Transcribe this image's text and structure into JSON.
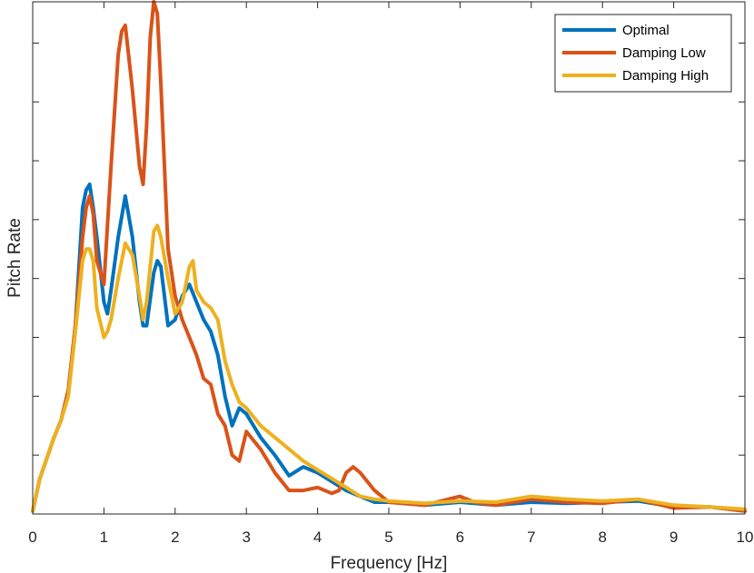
{
  "chart_data": {
    "type": "line",
    "title": "",
    "xlabel": "Frequency [Hz]",
    "ylabel": "Pitch Rate",
    "xlim": [
      0,
      10
    ],
    "ylim": [
      0,
      8.7
    ],
    "x_ticks": [
      0,
      1,
      2,
      3,
      4,
      5,
      6,
      7,
      8,
      9,
      10
    ],
    "x_tick_labels": [
      "0",
      "1",
      "2",
      "3",
      "4",
      "5",
      "6",
      "7",
      "8",
      "9",
      "10"
    ],
    "y_ticks": [
      1,
      2,
      3,
      4,
      5,
      6,
      7,
      8
    ],
    "y_tick_labels": [
      "",
      "",
      "",
      "",
      "",
      "",
      "",
      ""
    ],
    "grid": false,
    "legend_position": "top-right",
    "series": [
      {
        "name": "Optimal",
        "color": "#0072BD",
        "x": [
          0,
          0.1,
          0.2,
          0.3,
          0.4,
          0.5,
          0.6,
          0.7,
          0.75,
          0.8,
          0.85,
          0.9,
          1.0,
          1.05,
          1.1,
          1.2,
          1.3,
          1.4,
          1.5,
          1.55,
          1.6,
          1.7,
          1.75,
          1.8,
          1.9,
          2.0,
          2.1,
          2.2,
          2.3,
          2.4,
          2.5,
          2.6,
          2.7,
          2.8,
          2.9,
          3.0,
          3.2,
          3.4,
          3.6,
          3.8,
          4.0,
          4.2,
          4.4,
          4.6,
          4.8,
          5.0,
          5.5,
          6.0,
          6.5,
          7.0,
          7.5,
          8.0,
          8.5,
          9.0,
          9.5,
          10.0
        ],
        "y": [
          0.05,
          0.6,
          0.95,
          1.3,
          1.6,
          2.1,
          3.2,
          5.2,
          5.5,
          5.6,
          5.2,
          4.7,
          3.6,
          3.4,
          3.8,
          4.7,
          5.4,
          4.7,
          3.6,
          3.2,
          3.2,
          4.1,
          4.3,
          4.2,
          3.2,
          3.3,
          3.7,
          3.9,
          3.6,
          3.3,
          3.1,
          2.7,
          2.0,
          1.5,
          1.8,
          1.7,
          1.3,
          1.0,
          0.65,
          0.8,
          0.7,
          0.55,
          0.4,
          0.3,
          0.2,
          0.2,
          0.15,
          0.2,
          0.15,
          0.2,
          0.18,
          0.2,
          0.22,
          0.12,
          0.12,
          0.05
        ]
      },
      {
        "name": "Damping Low",
        "color": "#D95319",
        "x": [
          0,
          0.1,
          0.2,
          0.3,
          0.4,
          0.5,
          0.6,
          0.7,
          0.75,
          0.8,
          0.85,
          0.9,
          1.0,
          1.1,
          1.2,
          1.25,
          1.3,
          1.4,
          1.5,
          1.55,
          1.6,
          1.65,
          1.7,
          1.75,
          1.8,
          1.9,
          2.0,
          2.1,
          2.2,
          2.3,
          2.4,
          2.5,
          2.6,
          2.7,
          2.8,
          2.9,
          3.0,
          3.2,
          3.4,
          3.6,
          3.8,
          4.0,
          4.2,
          4.3,
          4.4,
          4.5,
          4.6,
          4.8,
          5.0,
          5.5,
          6.0,
          6.2,
          6.5,
          7.0,
          7.5,
          8.0,
          8.5,
          9.0,
          9.5,
          10.0
        ],
        "y": [
          0.05,
          0.6,
          0.95,
          1.3,
          1.6,
          2.1,
          3.2,
          4.7,
          5.2,
          5.4,
          5.1,
          4.3,
          3.9,
          5.9,
          7.8,
          8.2,
          8.3,
          7.2,
          5.9,
          5.6,
          6.6,
          8.1,
          8.7,
          8.5,
          7.3,
          4.5,
          3.7,
          3.3,
          3.0,
          2.7,
          2.3,
          2.2,
          1.7,
          1.5,
          1.0,
          0.9,
          1.4,
          1.1,
          0.7,
          0.4,
          0.4,
          0.45,
          0.35,
          0.4,
          0.7,
          0.8,
          0.7,
          0.4,
          0.2,
          0.15,
          0.3,
          0.2,
          0.15,
          0.25,
          0.2,
          0.18,
          0.25,
          0.1,
          0.12,
          0.05
        ]
      },
      {
        "name": "Damping High",
        "color": "#EDB120",
        "x": [
          0,
          0.1,
          0.2,
          0.3,
          0.4,
          0.5,
          0.6,
          0.7,
          0.75,
          0.8,
          0.85,
          0.9,
          1.0,
          1.05,
          1.1,
          1.2,
          1.3,
          1.4,
          1.5,
          1.55,
          1.6,
          1.7,
          1.75,
          1.8,
          1.9,
          2.0,
          2.1,
          2.2,
          2.25,
          2.3,
          2.4,
          2.5,
          2.6,
          2.7,
          2.8,
          2.9,
          3.0,
          3.2,
          3.4,
          3.6,
          3.8,
          4.0,
          4.2,
          4.4,
          4.6,
          4.8,
          5.0,
          5.5,
          6.0,
          6.5,
          7.0,
          7.5,
          8.0,
          8.5,
          9.0,
          9.5,
          10.0
        ],
        "y": [
          0.05,
          0.6,
          0.95,
          1.3,
          1.6,
          2.0,
          3.1,
          4.3,
          4.5,
          4.5,
          4.3,
          3.5,
          3.0,
          3.1,
          3.3,
          4.0,
          4.6,
          4.4,
          3.7,
          3.3,
          3.6,
          4.8,
          4.9,
          4.7,
          4.0,
          3.4,
          3.6,
          4.2,
          4.3,
          3.8,
          3.6,
          3.5,
          3.3,
          2.6,
          2.2,
          1.9,
          1.8,
          1.5,
          1.3,
          1.1,
          0.9,
          0.75,
          0.6,
          0.45,
          0.3,
          0.25,
          0.22,
          0.18,
          0.22,
          0.2,
          0.3,
          0.25,
          0.22,
          0.25,
          0.15,
          0.12,
          0.08
        ]
      }
    ]
  }
}
